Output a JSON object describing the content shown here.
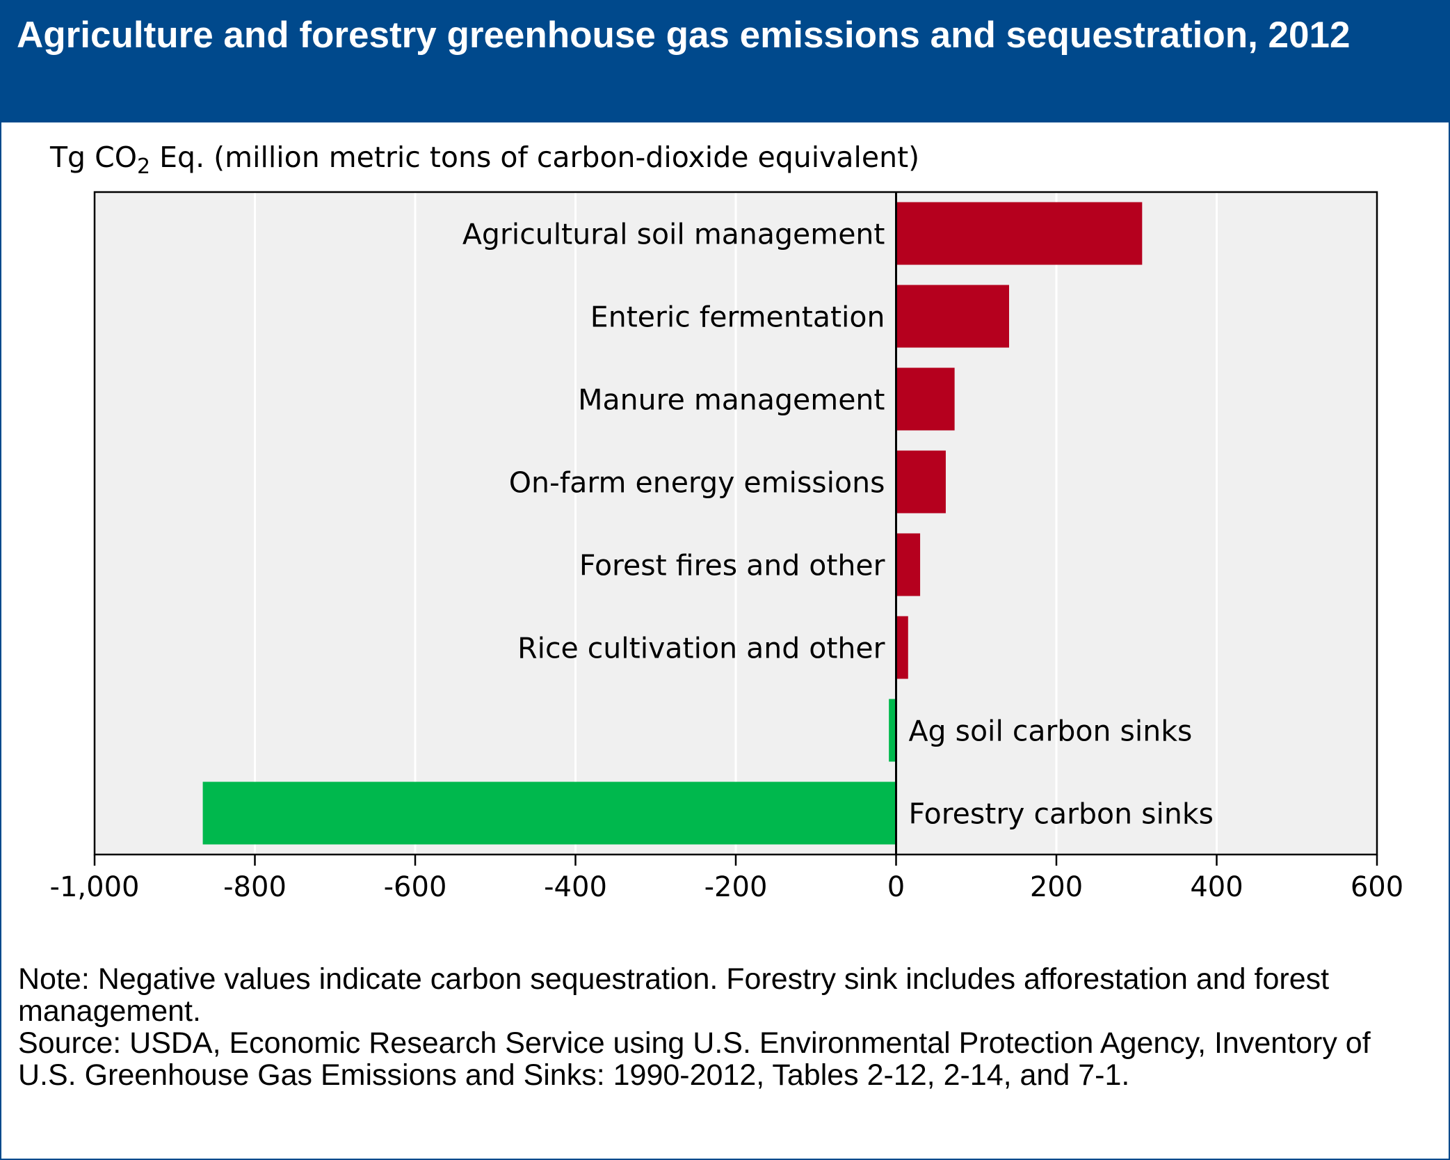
{
  "header": {
    "title": "Agriculture and forestry greenhouse gas emissions and sequestration, 2012"
  },
  "unit": {
    "prefix": "Tg CO",
    "subscript": "2",
    "suffix": " Eq. (million metric tons of carbon-dioxide equivalent)"
  },
  "colors": {
    "header_bg": "#00498c",
    "emission": "#b5001e",
    "sink": "#00b84d",
    "plot_bg": "#f0f0f0",
    "gridline": "#ffffff"
  },
  "chart_data": {
    "type": "bar",
    "orientation": "horizontal",
    "title": "Agriculture and forestry greenhouse gas emissions and sequestration, 2012",
    "xlabel": "Tg CO2 Eq. (million metric tons of carbon-dioxide equivalent)",
    "ylabel": "",
    "xlim": [
      -1000,
      600
    ],
    "xticks": [
      -1000,
      -800,
      -600,
      -400,
      -200,
      0,
      200,
      400,
      600
    ],
    "xtick_labels": [
      "-1,000",
      "-800",
      "-600",
      "-400",
      "-200",
      "0",
      "200",
      "400",
      "600"
    ],
    "grid": "vertical gridlines",
    "categories": [
      "Agricultural soil management",
      "Enteric fermentation",
      "Manure management",
      "On-farm energy emissions",
      "Forest fires and other",
      "Rice cultivation and other",
      "Ag soil carbon sinks",
      "Forestry carbon sinks"
    ],
    "values": [
      307,
      141,
      73,
      62,
      30,
      15,
      -9,
      -865
    ]
  },
  "notes": {
    "note": "Note: Negative values indicate carbon sequestration. Forestry sink includes afforestation and forest management.",
    "source": "Source: USDA, Economic Research Service using U.S. Environmental Protection Agency, Inventory of U.S. Greenhouse Gas Emissions and Sinks: 1990-2012, Tables 2-12, 2-14, and 7-1."
  }
}
